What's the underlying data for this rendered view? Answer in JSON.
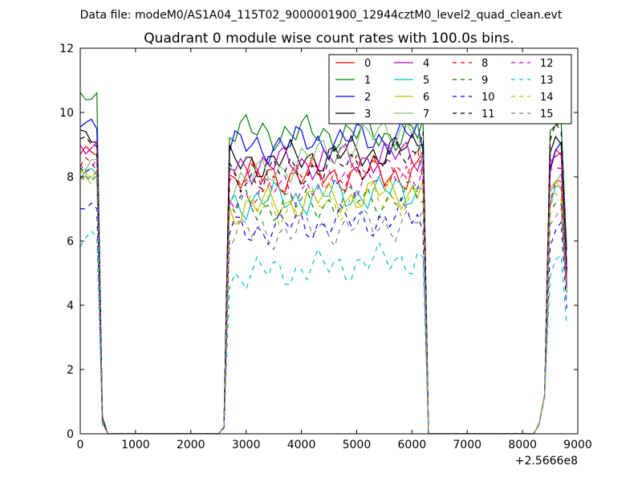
{
  "chart_data": {
    "type": "line",
    "suptitle": "Data file: modeM0/AS1A04_115T02_9000001900_12944cztM0_level2_quad_clean.evt",
    "title": "Quadrant 0 module wise count rates with 100.0s bins.",
    "xlabel": "",
    "ylabel": "",
    "x_offset_label": "+2.5666e8",
    "xlim": [
      0,
      9000
    ],
    "ylim": [
      0,
      12
    ],
    "xticks": [
      "0",
      "1000",
      "2000",
      "3000",
      "4000",
      "5000",
      "6000",
      "7000",
      "8000",
      "9000"
    ],
    "yticks": [
      "0",
      "2",
      "4",
      "6",
      "8",
      "10",
      "12"
    ],
    "legend_position": "top-right",
    "series": [
      {
        "name": "0",
        "color": "#ff0000",
        "dash": "solid",
        "base": [
          8.7,
          8.0,
          8.1,
          8.8
        ]
      },
      {
        "name": "1",
        "color": "#008000",
        "dash": "solid",
        "base": [
          10.4,
          9.4,
          9.3,
          9.8
        ]
      },
      {
        "name": "2",
        "color": "#0000ff",
        "dash": "solid",
        "base": [
          9.6,
          8.9,
          9.3,
          8.8
        ]
      },
      {
        "name": "3",
        "color": "#000000",
        "dash": "solid",
        "base": [
          9.3,
          8.4,
          8.9,
          9.0
        ]
      },
      {
        "name": "4",
        "color": "#bf00bf",
        "dash": "solid",
        "base": [
          9.0,
          8.3,
          8.7,
          8.7
        ]
      },
      {
        "name": "5",
        "color": "#00bfbf",
        "dash": "solid",
        "base": [
          8.2,
          7.2,
          7.6,
          7.6
        ]
      },
      {
        "name": "6",
        "color": "#bfbf00",
        "dash": "solid",
        "base": [
          8.1,
          7.0,
          7.6,
          7.9
        ]
      },
      {
        "name": "7",
        "color": "#7fbf7f",
        "dash": "solid",
        "base": [
          8.3,
          7.7,
          9.8,
          8.1
        ]
      },
      {
        "name": "8",
        "color": "#ff0000",
        "dash": "dashed",
        "base": [
          8.3,
          7.8,
          8.3,
          7.8
        ]
      },
      {
        "name": "9",
        "color": "#008000",
        "dash": "dashed",
        "base": [
          8.0,
          7.0,
          7.4,
          7.2
        ]
      },
      {
        "name": "10",
        "color": "#0000ff",
        "dash": "dashed",
        "base": [
          7.1,
          6.3,
          6.8,
          6.3
        ]
      },
      {
        "name": "11",
        "color": "#000000",
        "dash": "dashed",
        "base": [
          9.2,
          7.9,
          8.7,
          9.4
        ]
      },
      {
        "name": "12",
        "color": "#bf00bf",
        "dash": "dashed",
        "base": [
          8.4,
          7.4,
          8.2,
          8.4
        ]
      },
      {
        "name": "13",
        "color": "#00bfbf",
        "dash": "dashed",
        "base": [
          6.1,
          4.9,
          5.5,
          5.5
        ]
      },
      {
        "name": "14",
        "color": "#bfbf00",
        "dash": "dashed",
        "base": [
          7.8,
          6.9,
          7.4,
          7.5
        ]
      },
      {
        "name": "15",
        "color": "#808080",
        "dash": "dashed",
        "base": [
          7.9,
          6.2,
          6.6,
          7.0
        ]
      }
    ],
    "x": [
      0,
      100,
      200,
      300,
      400,
      500,
      2500,
      2600,
      2700,
      2800,
      2900,
      3000,
      3100,
      3200,
      3300,
      3400,
      3500,
      3600,
      3700,
      3800,
      3900,
      4000,
      4100,
      4200,
      4300,
      4400,
      4500,
      4600,
      4700,
      4800,
      4900,
      5000,
      5100,
      5200,
      5300,
      5400,
      5500,
      5600,
      5700,
      5800,
      5900,
      6000,
      6100,
      6200,
      6300,
      8200,
      8300,
      8400,
      8500,
      8600,
      8700,
      8800
    ]
  }
}
